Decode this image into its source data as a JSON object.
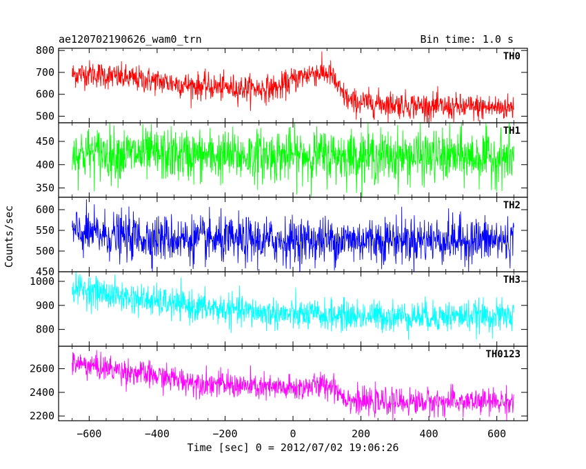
{
  "header": {
    "title": "ae120702190626_wam0_trn",
    "bin_time": "Bin time: 1.0 s"
  },
  "axes": {
    "xlabel": "Time [sec] 0 = 2012/07/02 19:06:26",
    "ylabel": "Counts/sec",
    "x_ticks": [
      "−600",
      "−400",
      "−200",
      "0",
      "200",
      "400",
      "600"
    ]
  },
  "chart_data": {
    "type": "line",
    "xlim": [
      -690,
      690
    ],
    "x_range": [
      -650,
      650
    ],
    "bin_seconds": 1.0,
    "panels": [
      {
        "name": "TH0",
        "color": "#ff0000",
        "ylim": [
          470,
          810
        ],
        "yticks": [
          500,
          600,
          700,
          800
        ],
        "noise": 30,
        "trend": [
          [
            -650,
            690
          ],
          [
            -600,
            695
          ],
          [
            -500,
            675
          ],
          [
            -400,
            660
          ],
          [
            -300,
            640
          ],
          [
            -200,
            630
          ],
          [
            -100,
            625
          ],
          [
            -40,
            630
          ],
          [
            0,
            665
          ],
          [
            60,
            700
          ],
          [
            110,
            695
          ],
          [
            140,
            610
          ],
          [
            170,
            565
          ],
          [
            300,
            555
          ],
          [
            450,
            540
          ],
          [
            650,
            540
          ]
        ]
      },
      {
        "name": "TH1",
        "color": "#00ff00",
        "ylim": [
          330,
          490
        ],
        "yticks": [
          350,
          400,
          450
        ],
        "noise": 28,
        "trend": [
          [
            -650,
            425
          ],
          [
            -500,
            423
          ],
          [
            -200,
            418
          ],
          [
            0,
            420
          ],
          [
            300,
            418
          ],
          [
            650,
            415
          ]
        ]
      },
      {
        "name": "TH2",
        "color": "#0000ff",
        "ylim": [
          450,
          630
        ],
        "yticks": [
          450,
          500,
          550,
          600
        ],
        "noise": 28,
        "trend": [
          [
            -650,
            545
          ],
          [
            -500,
            535
          ],
          [
            -200,
            525
          ],
          [
            0,
            525
          ],
          [
            300,
            528
          ],
          [
            650,
            525
          ]
        ]
      },
      {
        "name": "TH3",
        "color": "#00ffff",
        "ylim": [
          730,
          1040
        ],
        "yticks": [
          800,
          900,
          1000
        ],
        "noise": 32,
        "trend": [
          [
            -650,
            975
          ],
          [
            -500,
            935
          ],
          [
            -300,
            895
          ],
          [
            -100,
            870
          ],
          [
            0,
            860
          ],
          [
            300,
            855
          ],
          [
            650,
            855
          ]
        ]
      },
      {
        "name": "TH0123",
        "color": "#ff00ff",
        "ylim": [
          2160,
          2790
        ],
        "yticks": [
          2200,
          2400,
          2600
        ],
        "noise": 55,
        "trend": [
          [
            -650,
            2650
          ],
          [
            -500,
            2580
          ],
          [
            -300,
            2490
          ],
          [
            -100,
            2440
          ],
          [
            0,
            2430
          ],
          [
            60,
            2455
          ],
          [
            120,
            2460
          ],
          [
            150,
            2360
          ],
          [
            200,
            2315
          ],
          [
            400,
            2320
          ],
          [
            650,
            2320
          ]
        ]
      }
    ]
  }
}
